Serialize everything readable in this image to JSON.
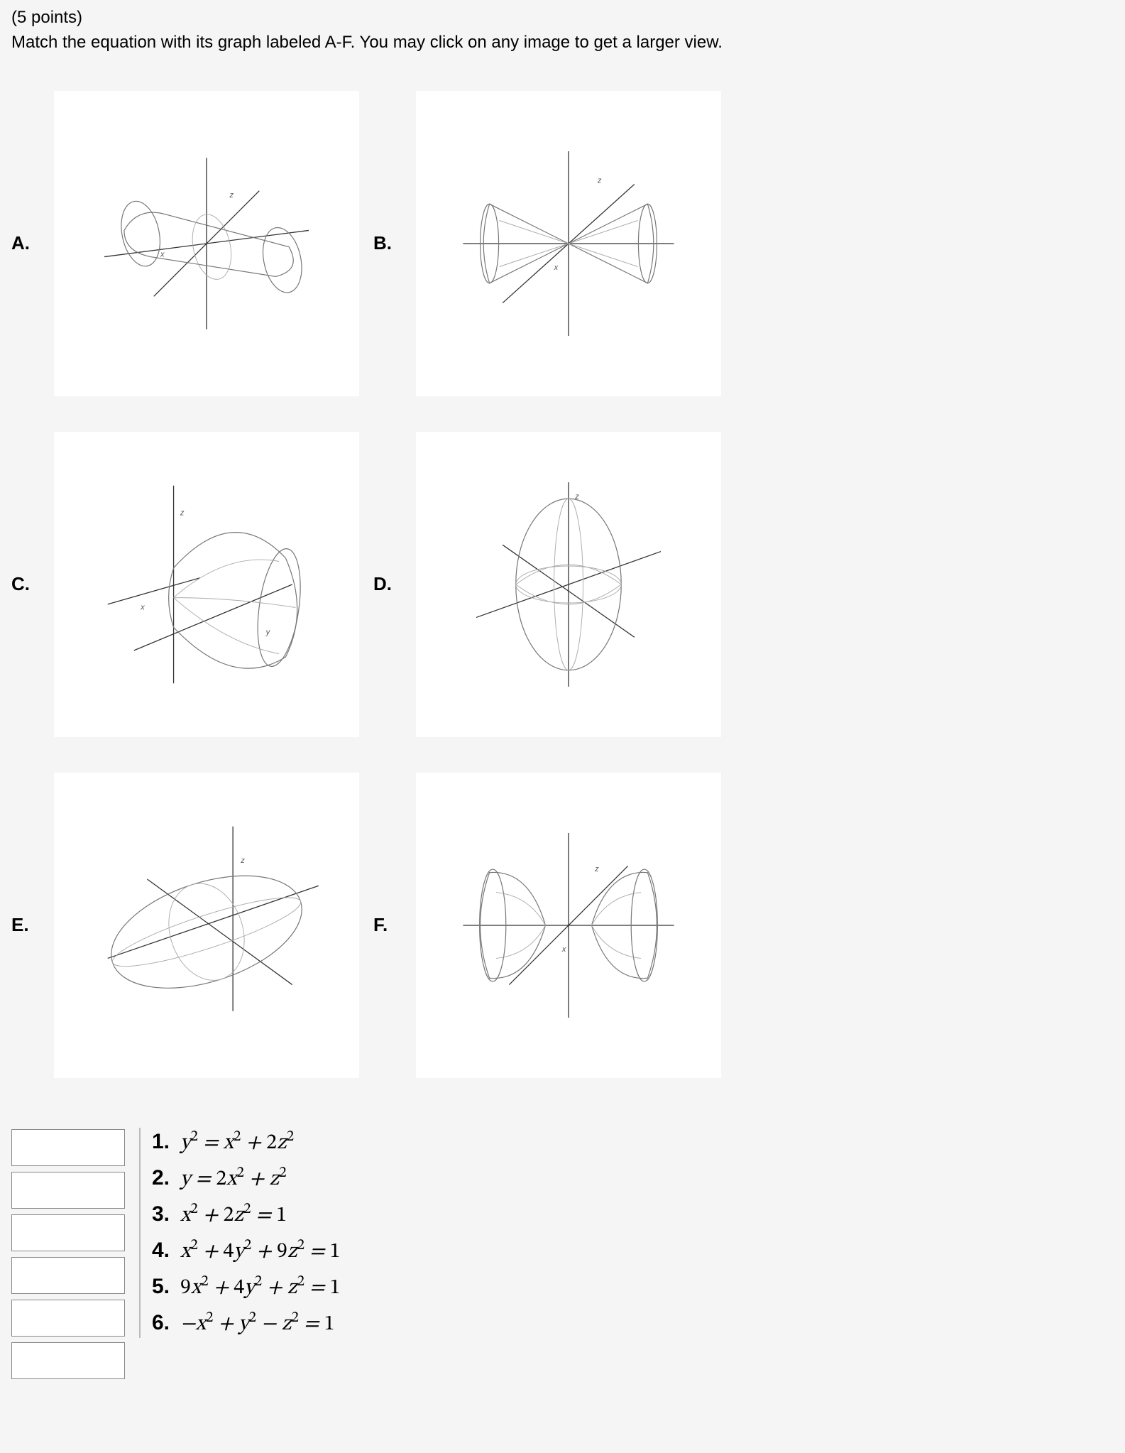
{
  "header": {
    "points": "(5 points)",
    "instructions": "Match the equation with its graph labeled A-F. You may click on any image to get a larger view."
  },
  "tiles": {
    "A": {
      "label": "A.",
      "type": "cylinder",
      "axis_labels": {
        "x": "x",
        "z": "z"
      }
    },
    "B": {
      "label": "B.",
      "type": "double-cone-narrow",
      "axis_labels": {
        "x": "x",
        "z": "z"
      }
    },
    "C": {
      "label": "C.",
      "type": "paraboloid",
      "axis_labels": {
        "x": "x",
        "y": "y",
        "z": "z"
      }
    },
    "D": {
      "label": "D.",
      "type": "ellipsoid-tall",
      "axis_labels": {
        "z": "z"
      }
    },
    "E": {
      "label": "E.",
      "type": "ellipsoid-flat",
      "axis_labels": {
        "z": "z"
      }
    },
    "F": {
      "label": "F.",
      "type": "double-cone-wide",
      "axis_labels": {
        "x": "x",
        "z": "z"
      }
    }
  },
  "equations": [
    {
      "n": "1.",
      "html": "y<sup>2</sup> = x<sup>2</sup> + <span class='n'>2</span>z<sup>2</sup>"
    },
    {
      "n": "2.",
      "html": "y = <span class='n'>2</span>x<sup>2</sup> + z<sup>2</sup>"
    },
    {
      "n": "3.",
      "html": "x<sup>2</sup> + <span class='n'>2</span>z<sup>2</sup> = <span class='n'>1</span>"
    },
    {
      "n": "4.",
      "html": "x<sup>2</sup> + <span class='n'>4</span>y<sup>2</sup> + <span class='n'>9</span>z<sup>2</sup> = <span class='n'>1</span>"
    },
    {
      "n": "5.",
      "html": "<span class='n'>9</span>x<sup>2</sup> + <span class='n'>4</span>y<sup>2</sup> + z<sup>2</sup> = <span class='n'>1</span>"
    },
    {
      "n": "6.",
      "html": "−x<sup>2</sup> + y<sup>2</sup> − z<sup>2</sup> = <span class='n'>1</span>"
    }
  ],
  "answer_inputs": 6,
  "colors": {
    "page_bg": "#f5f5f5",
    "tile_bg": "#ffffff",
    "surface_fill": "#c9c9c9",
    "surface_edge": "#777777",
    "axis": "#333333",
    "divider": "#bbbbbb"
  }
}
